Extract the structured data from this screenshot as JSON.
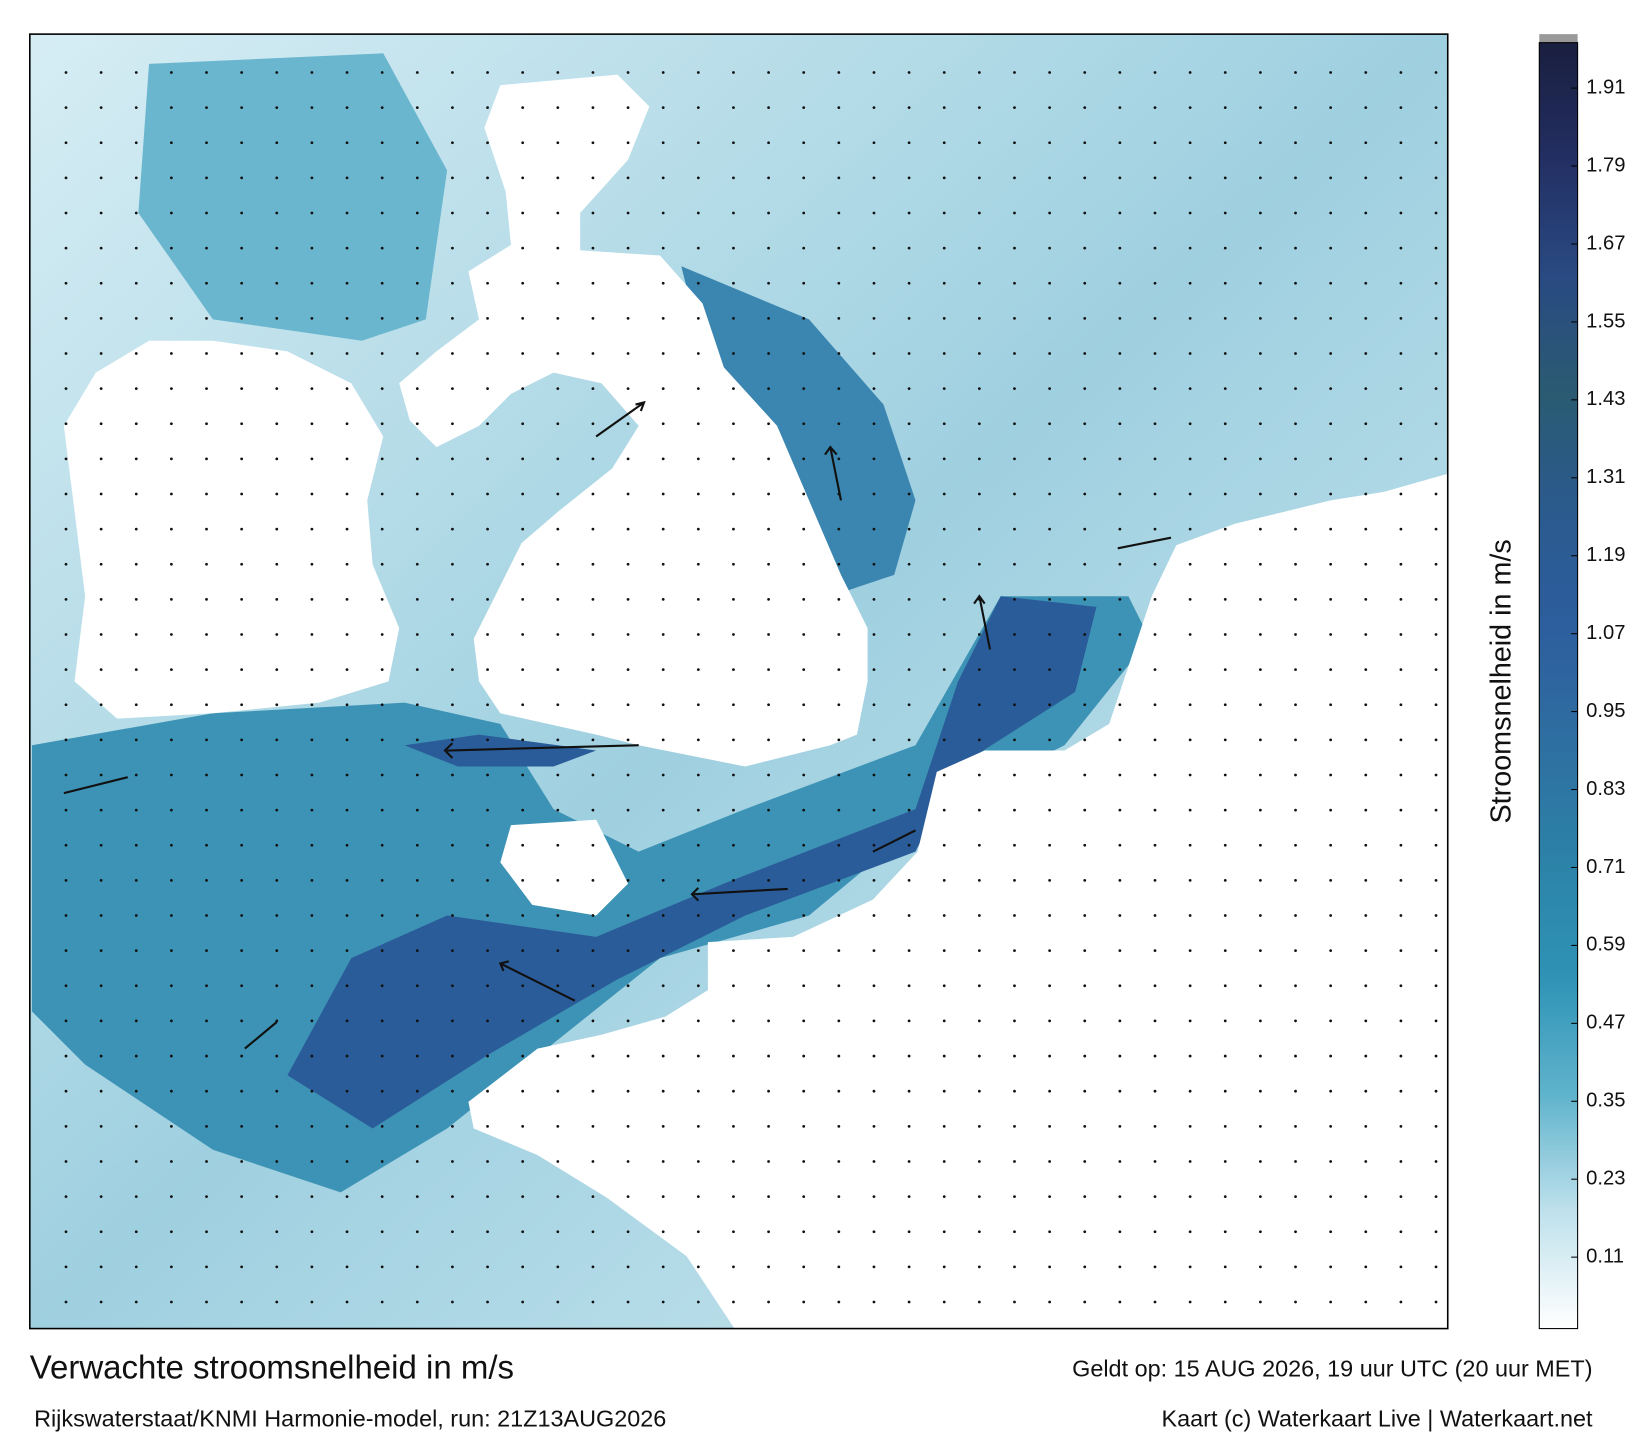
{
  "footer": {
    "title": "Verwachte stroomsnelheid in m/s",
    "source": "Rijkswaterstaat/KNMI Harmonie-model, run: 21Z13AUG2026",
    "valid": "Geldt op: 15 AUG 2026, 19 uur UTC (20 uur MET)",
    "credit": "Kaart (c) Waterkaart Live | Waterkaart.net"
  },
  "colorbar": {
    "label": "Stroomsnelheid in m/s",
    "lim": [
      0,
      1.98
    ],
    "ticks": [
      0.11,
      0.23,
      0.35,
      0.47,
      0.59,
      0.71,
      0.83,
      0.95,
      1.07,
      1.19,
      1.31,
      1.43,
      1.55,
      1.67,
      1.79,
      1.91
    ],
    "colors": [
      "#ffffff",
      "#bfe1ec",
      "#5fb3cc",
      "#2f93b6",
      "#2c82a8",
      "#2e6fa1",
      "#2d5e9e",
      "#2b5a8e",
      "#2a5b72",
      "#294a82",
      "#232f63",
      "#1a1f3f"
    ]
  }
}
